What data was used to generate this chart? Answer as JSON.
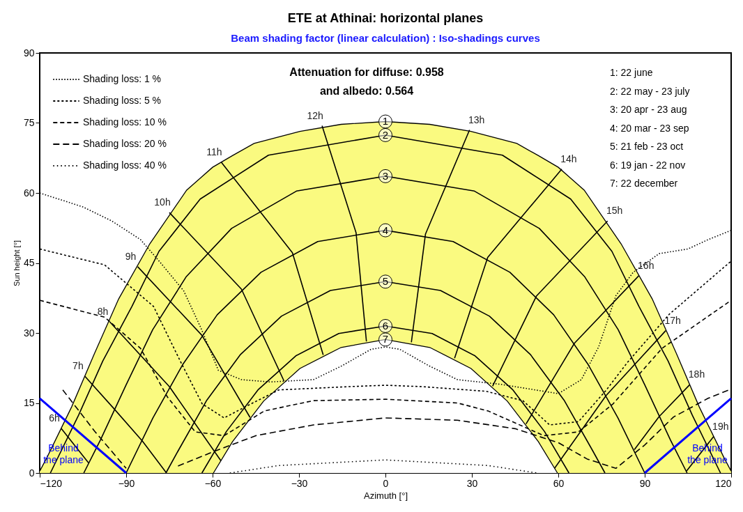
{
  "chart_data": {
    "type": "line",
    "title": "ETE at Athinai: horizontal planes",
    "subtitle": "Beam shading factor (linear calculation) : Iso-shadings curves",
    "xlabel": "Azimuth [°]",
    "ylabel": "Sun height [°]",
    "xlim": [
      -120,
      120
    ],
    "xticks": [
      -120,
      -90,
      -60,
      -30,
      0,
      30,
      60,
      90,
      120
    ],
    "ylim": [
      0,
      90
    ],
    "yticks": [
      0,
      15,
      30,
      45,
      60,
      75,
      90
    ],
    "grid": false,
    "legend": "top left",
    "series": [
      {
        "type": "area",
        "name": "1",
        "color": "#fafa80",
        "x": [
          -120,
          -117.5,
          -108.9,
          -101,
          -92.6,
          -81.8,
          -69,
          -60,
          -53.1,
          -45.6,
          -29.7,
          -15.4,
          0,
          15.4,
          29.7,
          45.6,
          53.1,
          60,
          69,
          81.8,
          92.6,
          101,
          108.9,
          117.5,
          120
        ],
        "values": [
          0.4,
          3.3,
          14.2,
          25.6,
          37.3,
          49.1,
          60.6,
          65.5,
          68,
          70.6,
          73.2,
          74.7,
          75.3,
          74.7,
          73.2,
          70.6,
          68,
          65.5,
          60.6,
          49.1,
          37.3,
          25.6,
          14.2,
          3.3,
          0.4
        ]
      },
      {
        "name": "2",
        "color": "#000000",
        "x": [
          -116.3,
          -106.5,
          -98.1,
          -88,
          -78.6,
          -64.3,
          -40.6,
          0,
          40.6,
          64.3,
          78.6,
          88,
          98.1,
          106.5,
          116.3
        ],
        "values": [
          0,
          12.4,
          24,
          35.7,
          47.5,
          58.7,
          68.1,
          72.4,
          68.1,
          58.7,
          47.5,
          35.7,
          24,
          12.4,
          0
        ]
      },
      {
        "name": "3",
        "color": "#000000",
        "x": [
          -104.7,
          -98.9,
          -90,
          -80.8,
          -69.1,
          -53.4,
          -30.9,
          0,
          30.9,
          53.4,
          69.1,
          80.8,
          90,
          98.9,
          104.7
        ],
        "values": [
          0,
          7.1,
          18.9,
          30.7,
          42.1,
          52.4,
          60.4,
          63.6,
          60.4,
          52.4,
          42.1,
          30.7,
          18.9,
          7.1,
          0
        ]
      },
      {
        "name": "4",
        "color": "#000000",
        "x": [
          -90,
          -80.7,
          -70.4,
          -58.4,
          -43.2,
          -23.5,
          0,
          23.5,
          43.2,
          58.4,
          70.4,
          80.7,
          90
        ],
        "values": [
          0,
          11.8,
          23.2,
          33.9,
          43,
          49.6,
          52,
          49.6,
          43,
          33.9,
          23.2,
          11.8,
          0
        ]
      },
      {
        "name": "5",
        "color": "#000000",
        "x": [
          -76.2,
          -72,
          -62,
          -50.3,
          -36.1,
          -19.1,
          0,
          19.1,
          36.1,
          50.3,
          62,
          72,
          76.2
        ],
        "values": [
          0,
          4.7,
          15.6,
          25.4,
          33.6,
          39.1,
          41,
          39.1,
          33.6,
          25.4,
          15.6,
          4.7,
          0
        ]
      },
      {
        "name": "6",
        "color": "#000000",
        "x": [
          -63.7,
          -55.2,
          -44.1,
          -31.1,
          -16.2,
          0,
          16.2,
          31.1,
          44.1,
          55.2,
          63.7
        ],
        "values": [
          0,
          8.9,
          17.9,
          25.1,
          29.9,
          31.5,
          29.9,
          25.1,
          17.9,
          8.9,
          0
        ]
      },
      {
        "type": "area",
        "name": "7",
        "color": "#ffffff",
        "x": [
          -59.7,
          -53.1,
          -42.3,
          -29.7,
          -15.4,
          0,
          15.4,
          29.7,
          42.3,
          53.1,
          59.7
        ],
        "values": [
          0,
          6.7,
          15.4,
          22.4,
          26.9,
          28.6,
          26.9,
          22.4,
          15.4,
          6.7,
          0
        ]
      },
      {
        "name": "6h",
        "color": "#000000",
        "x": [
          -112.5,
          -103.1
        ],
        "values": [
          9.5,
          2.2
        ]
      },
      {
        "name": "7h",
        "color": "#000000",
        "x": [
          -104.3,
          -94.4,
          -84.3,
          -76
        ],
        "values": [
          20.7,
          13.9,
          6.8,
          0
        ]
      },
      {
        "name": "8h",
        "color": "#000000",
        "x": [
          -95.7,
          -75,
          -57.1
        ],
        "values": [
          32.4,
          18.5,
          2.6
        ]
      },
      {
        "name": "9h",
        "color": "#000000",
        "x": [
          -86,
          -63.7,
          -47
        ],
        "values": [
          44.2,
          29.5,
          11.9
        ]
      },
      {
        "name": "10h",
        "color": "#000000",
        "x": [
          -75,
          -50,
          -35.2
        ],
        "values": [
          55.8,
          39.4,
          19.7
        ]
      },
      {
        "name": "11h",
        "color": "#000000",
        "x": [
          -57,
          -32.3,
          -21.6
        ],
        "values": [
          66.6,
          47.2,
          25.3
        ]
      },
      {
        "name": "12h",
        "color": "#000000",
        "x": [
          -22,
          -10.2,
          -6.6
        ],
        "values": [
          74.4,
          51.5,
          28.2
        ]
      },
      {
        "name": "13h",
        "color": "#000000",
        "x": [
          9,
          13.9,
          29.2
        ],
        "values": [
          28,
          51.2,
          73.5
        ]
      },
      {
        "name": "14h",
        "color": "#000000",
        "x": [
          24,
          35.5,
          61.2
        ],
        "values": [
          24.6,
          46.2,
          65.1
        ]
      },
      {
        "name": "15h",
        "color": "#000000",
        "x": [
          37.2,
          52.4,
          77.1
        ],
        "values": [
          18.6,
          37.9,
          54
        ]
      },
      {
        "name": "16h",
        "color": "#000000",
        "x": [
          48.8,
          65.6,
          88
        ],
        "values": [
          10.5,
          27.8,
          42.3
        ]
      },
      {
        "name": "17h",
        "color": "#000000",
        "x": [
          58.7,
          76.6,
          97.3
        ],
        "values": [
          1,
          16.6,
          30.5
        ]
      },
      {
        "name": "18h",
        "color": "#000000",
        "x": [
          86.4,
          95,
          105.6
        ],
        "values": [
          5,
          12.1,
          18.9
        ]
      },
      {
        "name": "19h",
        "color": "#000000",
        "x": [
          104.5,
          113.9
        ],
        "values": [
          0.4,
          7.8
        ]
      },
      {
        "name": "Shading loss: 1 %",
        "color": "#000000",
        "line_style": "dotted",
        "x": [
          -120,
          -105,
          -95,
          -85,
          -78,
          -70,
          -64,
          -58,
          -50,
          -40,
          -25,
          -15,
          -5,
          0,
          5,
          15,
          25,
          40,
          50,
          60,
          68,
          74,
          80,
          86,
          95,
          105,
          112,
          120
        ],
        "values": [
          60,
          57,
          54,
          50,
          45,
          39,
          31,
          22,
          20,
          19.5,
          20,
          23,
          26.5,
          27,
          26.5,
          23,
          20,
          19,
          18,
          17,
          20,
          27,
          38,
          43,
          47,
          48,
          50,
          52
        ]
      },
      {
        "name": "Shading loss: 5 %",
        "color": "#000000",
        "line_style": "dashed",
        "x": [
          -120,
          -97.5,
          -80.5,
          -71,
          -63.6,
          -56,
          -46.7,
          -37,
          -12.8,
          0,
          12.8,
          35,
          47.7,
          57,
          67,
          76.7,
          84,
          98.5,
          120
        ],
        "values": [
          48,
          44.6,
          35.7,
          23.7,
          14.8,
          11.8,
          14.8,
          17.8,
          18.5,
          18.8,
          18.5,
          17.5,
          15.5,
          10.3,
          11,
          17.8,
          23.7,
          34,
          45.4
        ]
      },
      {
        "name": "Shading loss: 10 %",
        "color": "#000000",
        "line_style": "dashed",
        "x": [
          -120,
          -97.5,
          -85,
          -75.7,
          -66,
          -56,
          -42,
          -25,
          0,
          25,
          35.6,
          55,
          67,
          79,
          96,
          120
        ],
        "values": [
          37,
          33.4,
          26.7,
          16.3,
          8.8,
          8,
          13.3,
          15.5,
          15.8,
          15,
          13.3,
          8,
          8.8,
          14.8,
          26.7,
          37
        ]
      },
      {
        "name": "Shading loss: 20 %",
        "color": "#000000",
        "line_style": "dashed",
        "x": [
          -112,
          -101,
          -90,
          -81,
          -72,
          -60,
          -45,
          -25,
          0,
          25,
          45,
          60,
          70,
          80,
          90,
          100,
          112,
          120
        ],
        "values": [
          17.8,
          9,
          1,
          null,
          1.5,
          4.5,
          8,
          10.3,
          11.8,
          11.3,
          9.5,
          6.5,
          3,
          1,
          6,
          12,
          16,
          18
        ]
      },
      {
        "name": "Shading loss: 40 %",
        "color": "#000000",
        "line_style": "dotted",
        "x": [
          -54,
          -37,
          0,
          35.6,
          52.5
        ],
        "values": [
          0,
          1.6,
          2.8,
          1.6,
          0
        ]
      },
      {
        "name": "Behind the plane",
        "color": "#0000ff",
        "line_style": "solid",
        "x": [
          -120,
          -90
        ],
        "values": [
          16,
          0
        ]
      },
      {
        "name": "Behind the plane",
        "color": "#0000ff",
        "line_style": "solid",
        "x": [
          90,
          120
        ],
        "values": [
          0,
          16
        ]
      }
    ],
    "annotations": [
      "Attenuation for diffuse: 0.958",
      "and albedo: 0.564",
      "1: 22 june",
      "2: 22 may - 23 july",
      "3: 20 apr - 23 aug",
      "4: 20 mar - 23 sep",
      "5: 21 feb - 23 oct",
      "6: 19 jan - 22 nov",
      "7: 22 december"
    ]
  }
}
